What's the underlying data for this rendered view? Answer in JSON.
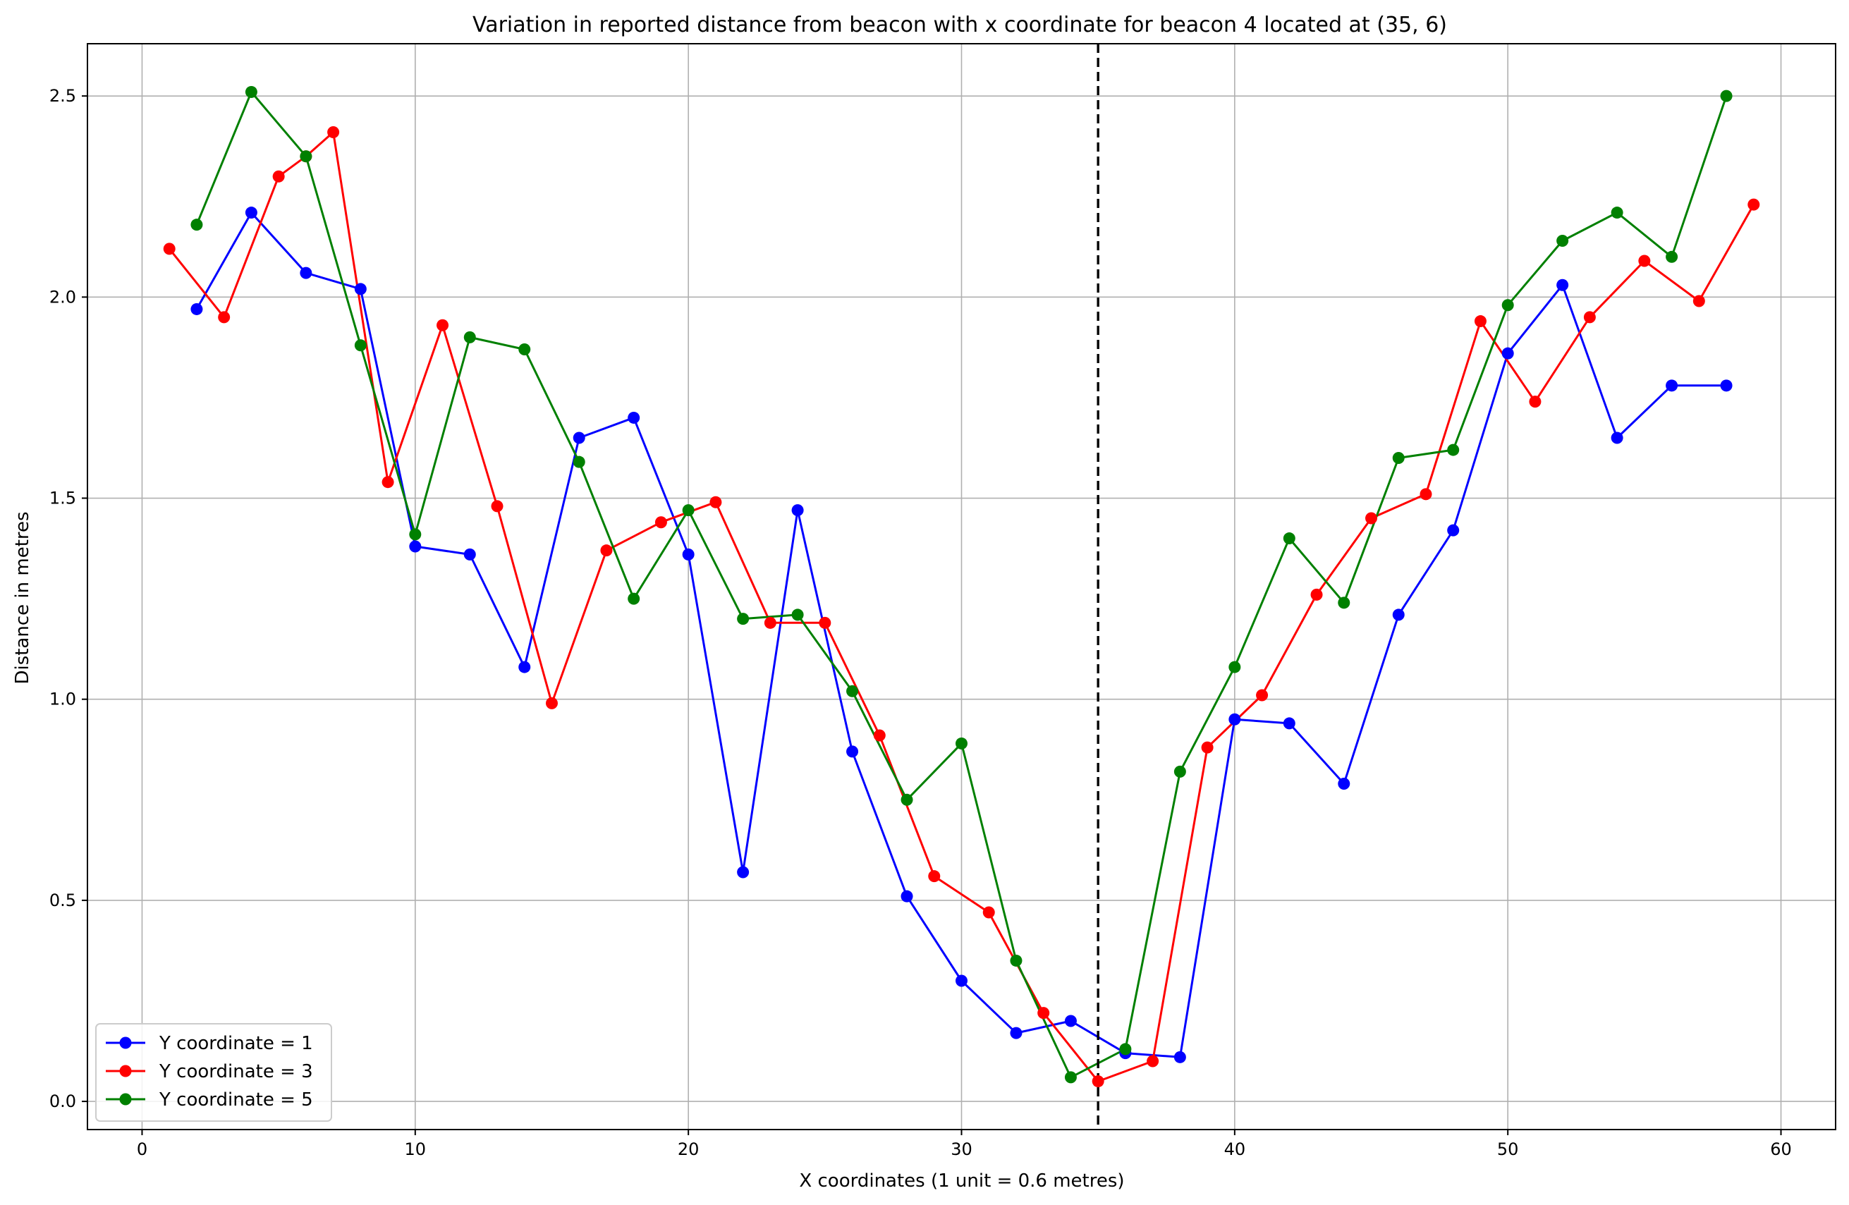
{
  "chart_data": {
    "type": "line",
    "title": "Variation in reported distance from beacon with x coordinate for beacon 4 located at (35, 6)",
    "xlabel": "X coordinates (1 unit = 0.6 metres)",
    "ylabel": "Distance in metres",
    "xlim": [
      -2,
      62
    ],
    "ylim": [
      -0.07,
      2.63
    ],
    "xticks": [
      0,
      10,
      20,
      30,
      40,
      50,
      60
    ],
    "yticks": [
      0.0,
      0.5,
      1.0,
      1.5,
      2.0,
      2.5
    ],
    "xtick_labels": [
      "0",
      "10",
      "20",
      "30",
      "40",
      "50",
      "60"
    ],
    "ytick_labels": [
      "0.0",
      "0.5",
      "1.0",
      "1.5",
      "2.0",
      "2.5"
    ],
    "grid": true,
    "legend_position": "lower-left",
    "vline": {
      "x": 35,
      "style": "dashed",
      "color": "#000000"
    },
    "series": [
      {
        "name": "Y coordinate = 1",
        "color": "#0000ff",
        "x": [
          2,
          4,
          6,
          8,
          10,
          12,
          14,
          16,
          18,
          20,
          22,
          24,
          26,
          28,
          30,
          32,
          34,
          36,
          38,
          40,
          42,
          44,
          46,
          48,
          50,
          52,
          54,
          56,
          58
        ],
        "y": [
          1.97,
          2.21,
          2.06,
          2.02,
          1.38,
          1.36,
          1.08,
          1.65,
          1.7,
          1.36,
          0.57,
          1.47,
          0.87,
          0.51,
          0.3,
          0.17,
          0.2,
          0.12,
          0.11,
          0.95,
          0.94,
          0.79,
          1.21,
          1.42,
          1.86,
          2.03,
          1.65,
          1.78,
          1.78
        ]
      },
      {
        "name": "Y coordinate = 3",
        "color": "#ff0000",
        "x": [
          1,
          3,
          5,
          6,
          7,
          9,
          11,
          13,
          15,
          17,
          19,
          21,
          23,
          25,
          27,
          29,
          31,
          33,
          35,
          37,
          39,
          41,
          43,
          45,
          47,
          49,
          51,
          53,
          55,
          57,
          59
        ],
        "y": [
          2.12,
          1.95,
          2.3,
          2.35,
          2.41,
          1.54,
          1.93,
          1.48,
          0.99,
          1.37,
          1.44,
          1.49,
          1.19,
          1.19,
          0.91,
          0.56,
          0.47,
          0.22,
          0.05,
          0.1,
          0.88,
          1.01,
          1.26,
          1.45,
          1.51,
          1.94,
          1.74,
          1.95,
          2.09,
          1.99,
          2.23
        ]
      },
      {
        "name": "Y coordinate = 5",
        "color": "#008000",
        "x": [
          2,
          4,
          6,
          8,
          10,
          12,
          14,
          16,
          18,
          20,
          22,
          24,
          26,
          28,
          30,
          32,
          34,
          36,
          38,
          40,
          42,
          44,
          46,
          48,
          50,
          52,
          54,
          56,
          58
        ],
        "y": [
          2.18,
          2.51,
          2.35,
          1.88,
          1.41,
          1.9,
          1.87,
          1.59,
          1.25,
          1.47,
          1.2,
          1.21,
          1.02,
          0.75,
          0.89,
          0.35,
          0.06,
          0.13,
          0.82,
          1.08,
          1.4,
          1.24,
          1.6,
          1.62,
          1.98,
          2.14,
          2.21,
          2.1,
          2.5
        ]
      }
    ]
  }
}
